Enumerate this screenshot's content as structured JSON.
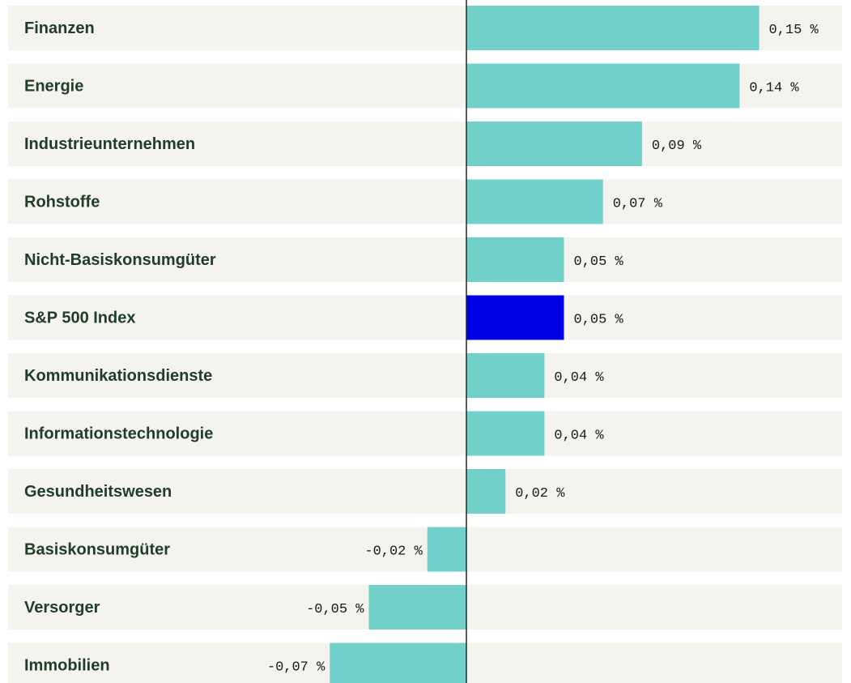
{
  "chart_data": {
    "type": "hbar",
    "categories": [
      "Finanzen",
      "Energie",
      "Industrieunternehmen",
      "Rohstoffe",
      "Nicht-Basiskonsumgüter",
      "S&P 500 Index",
      "Kommunikationsdienste",
      "Informationstechnologie",
      "Gesundheitswesen",
      "Basiskonsumgüter",
      "Versorger",
      "Immobilien"
    ],
    "values": [
      0.15,
      0.14,
      0.09,
      0.07,
      0.05,
      0.05,
      0.04,
      0.04,
      0.02,
      -0.02,
      -0.05,
      -0.07
    ],
    "value_labels": [
      "0,15 %",
      "0,14 %",
      "0,09 %",
      "0,07 %",
      "0,05 %",
      "0,05 %",
      "0,04 %",
      "0,04 %",
      "0,02 %",
      "-0,02 %",
      "-0,05 %",
      "-0,07 %"
    ],
    "colors": [
      "#72d0cb",
      "#72d0cb",
      "#72d0cb",
      "#72d0cb",
      "#72d0cb",
      "#0000e6",
      "#72d0cb",
      "#72d0cb",
      "#72d0cb",
      "#72d0cb",
      "#72d0cb",
      "#72d0cb"
    ]
  }
}
